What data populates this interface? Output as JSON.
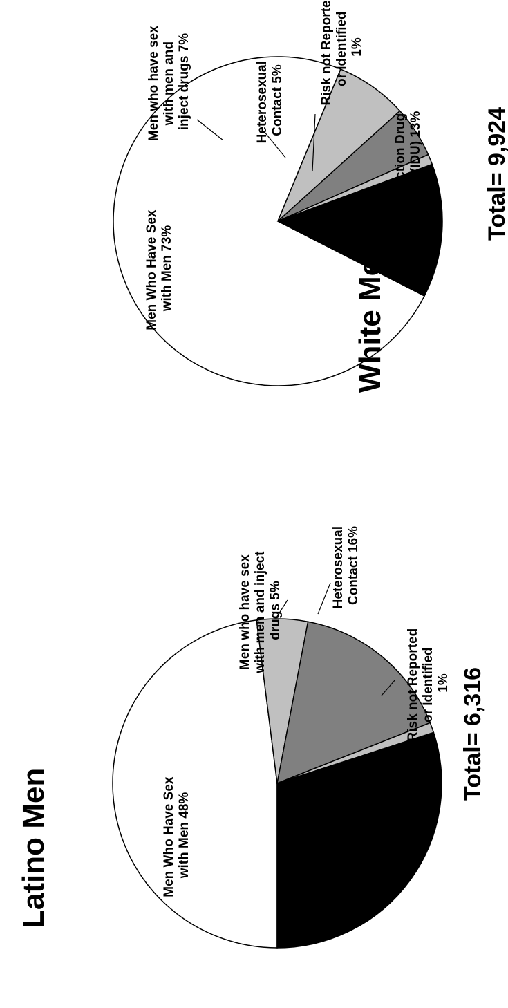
{
  "colors": {
    "white": "#ffffff",
    "light_gray": "#c0c0c0",
    "dark_gray": "#808080",
    "black": "#000000"
  },
  "chart_data": [
    {
      "type": "pie",
      "title": "Latino Men",
      "total_label": "Total= 6,316",
      "slices": [
        {
          "value": 48,
          "color": "#ffffff",
          "label_lines": [
            "Men Who Have Sex",
            "with Men 48%"
          ]
        },
        {
          "value": 5,
          "color": "#c0c0c0",
          "label_lines": [
            "Men who have sex",
            "with men and inject",
            "drugs 5%"
          ]
        },
        {
          "value": 16,
          "color": "#808080",
          "label_lines": [
            "Heterosexual",
            "Contact 16%"
          ]
        },
        {
          "value": 1,
          "color": "#c0c0c0",
          "label_lines": [
            "Risk not Reported",
            "or Identified",
            "1%"
          ]
        },
        {
          "value": 30,
          "color": "#000000",
          "label_lines": []
        }
      ]
    },
    {
      "type": "pie",
      "title": "White Men",
      "total_label": "Total= 9,924",
      "slices": [
        {
          "value": 73,
          "color": "#ffffff",
          "label_lines": [
            "Men Who Have Sex",
            "with Men 73%"
          ]
        },
        {
          "value": 7,
          "color": "#c0c0c0",
          "label_lines": [
            "Men who have sex",
            "with men and",
            "inject drugs 7%"
          ]
        },
        {
          "value": 5,
          "color": "#808080",
          "label_lines": [
            "Heterosexual",
            "Contact 5%"
          ]
        },
        {
          "value": 1,
          "color": "#c0c0c0",
          "label_lines": [
            "Risk not Reported",
            "or Identified",
            "1%"
          ]
        },
        {
          "value": 13,
          "color": "#000000",
          "label_lines": [
            "Injection Drug",
            "Use (IDU) 13%"
          ]
        }
      ]
    }
  ]
}
